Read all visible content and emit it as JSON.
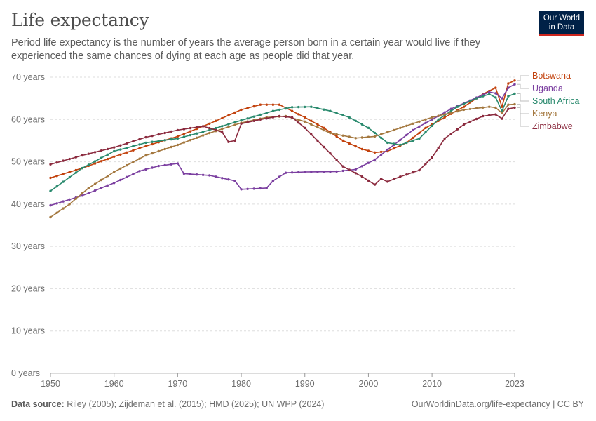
{
  "header": {
    "title": "Life expectancy",
    "subtitle": "Period life expectancy is the number of years the average person born in a certain year would live if they experienced the same chances of dying at each age as people did that year."
  },
  "logo": {
    "line1": "Our World",
    "line2": "in Data"
  },
  "footer": {
    "source_label": "Data source:",
    "source_text": " Riley (2005); Zijdeman et al. (2015); HMD (2025); UN WPP (2024)",
    "link": "OurWorldinData.org/life-expectancy | CC BY"
  },
  "chart_data": {
    "type": "line",
    "title": "Life expectancy",
    "xlim": [
      1950,
      2023
    ],
    "ylim": [
      0,
      70
    ],
    "x_ticks": [
      1950,
      1960,
      1970,
      1980,
      1990,
      2000,
      2010,
      2023
    ],
    "y_ticks": [
      0,
      10,
      20,
      30,
      40,
      50,
      60,
      70
    ],
    "y_tick_labels": [
      "0 years",
      "10 years",
      "20 years",
      "30 years",
      "40 years",
      "50 years",
      "60 years",
      "70 years"
    ],
    "series": [
      {
        "name": "Botswana",
        "color": "#c2410c",
        "values": [
          [
            1950,
            46.2
          ],
          [
            1955,
            48.5
          ],
          [
            1960,
            51.2
          ],
          [
            1965,
            53.7
          ],
          [
            1970,
            56.0
          ],
          [
            1975,
            59.0
          ],
          [
            1980,
            62.3
          ],
          [
            1983,
            63.5
          ],
          [
            1986,
            63.5
          ],
          [
            1990,
            60.5
          ],
          [
            1993,
            58.0
          ],
          [
            1996,
            55.0
          ],
          [
            1999,
            53.0
          ],
          [
            2001,
            52.2
          ],
          [
            2003,
            52.5
          ],
          [
            2006,
            54.5
          ],
          [
            2009,
            58.0
          ],
          [
            2012,
            60.5
          ],
          [
            2015,
            63.0
          ],
          [
            2018,
            66.0
          ],
          [
            2020,
            67.5
          ],
          [
            2021,
            63.0
          ],
          [
            2022,
            68.5
          ],
          [
            2023,
            69.2
          ]
        ]
      },
      {
        "name": "Uganda",
        "color": "#7b3fa0",
        "values": [
          [
            1950,
            39.7
          ],
          [
            1955,
            42.0
          ],
          [
            1960,
            45.0
          ],
          [
            1964,
            47.8
          ],
          [
            1967,
            49.0
          ],
          [
            1970,
            49.6
          ],
          [
            1971,
            47.2
          ],
          [
            1975,
            46.8
          ],
          [
            1979,
            45.5
          ],
          [
            1980,
            43.5
          ],
          [
            1984,
            43.8
          ],
          [
            1985,
            45.5
          ],
          [
            1987,
            47.4
          ],
          [
            1990,
            47.6
          ],
          [
            1995,
            47.7
          ],
          [
            1998,
            48.2
          ],
          [
            2001,
            50.5
          ],
          [
            2004,
            54.0
          ],
          [
            2007,
            57.5
          ],
          [
            2010,
            60.0
          ],
          [
            2013,
            62.5
          ],
          [
            2016,
            64.5
          ],
          [
            2019,
            66.5
          ],
          [
            2020,
            66.2
          ],
          [
            2021,
            65.0
          ],
          [
            2022,
            67.5
          ],
          [
            2023,
            68.3
          ]
        ]
      },
      {
        "name": "South Africa",
        "color": "#2a8a6e",
        "values": [
          [
            1950,
            43.1
          ],
          [
            1955,
            48.5
          ],
          [
            1960,
            52.5
          ],
          [
            1965,
            54.5
          ],
          [
            1970,
            55.5
          ],
          [
            1975,
            57.5
          ],
          [
            1980,
            59.8
          ],
          [
            1985,
            62.0
          ],
          [
            1988,
            62.9
          ],
          [
            1991,
            63.0
          ],
          [
            1994,
            62.0
          ],
          [
            1997,
            60.5
          ],
          [
            2000,
            58.0
          ],
          [
            2003,
            54.5
          ],
          [
            2005,
            54.0
          ],
          [
            2008,
            55.5
          ],
          [
            2011,
            60.0
          ],
          [
            2014,
            63.0
          ],
          [
            2017,
            65.0
          ],
          [
            2019,
            66.0
          ],
          [
            2020,
            65.2
          ],
          [
            2021,
            62.0
          ],
          [
            2022,
            65.5
          ],
          [
            2023,
            66.1
          ]
        ]
      },
      {
        "name": "Kenya",
        "color": "#a4783f",
        "values": [
          [
            1950,
            36.9
          ],
          [
            1953,
            40.0
          ],
          [
            1956,
            43.8
          ],
          [
            1960,
            47.6
          ],
          [
            1965,
            51.5
          ],
          [
            1970,
            54.0
          ],
          [
            1975,
            56.8
          ],
          [
            1980,
            59.2
          ],
          [
            1984,
            60.5
          ],
          [
            1987,
            60.8
          ],
          [
            1990,
            59.5
          ],
          [
            1994,
            56.8
          ],
          [
            1998,
            55.6
          ],
          [
            2001,
            56.0
          ],
          [
            2005,
            58.0
          ],
          [
            2010,
            60.5
          ],
          [
            2015,
            62.3
          ],
          [
            2019,
            63.0
          ],
          [
            2020,
            62.8
          ],
          [
            2021,
            61.5
          ],
          [
            2022,
            63.5
          ],
          [
            2023,
            63.6
          ]
        ]
      },
      {
        "name": "Zimbabwe",
        "color": "#8b2a3e",
        "values": [
          [
            1950,
            49.4
          ],
          [
            1955,
            51.5
          ],
          [
            1960,
            53.4
          ],
          [
            1965,
            55.8
          ],
          [
            1970,
            57.5
          ],
          [
            1974,
            58.4
          ],
          [
            1976,
            57.5
          ],
          [
            1977,
            57.0
          ],
          [
            1978,
            54.7
          ],
          [
            1979,
            55.0
          ],
          [
            1980,
            59.0
          ],
          [
            1983,
            60.0
          ],
          [
            1986,
            60.8
          ],
          [
            1988,
            60.5
          ],
          [
            1990,
            58.0
          ],
          [
            1993,
            53.5
          ],
          [
            1996,
            48.9
          ],
          [
            1999,
            46.5
          ],
          [
            2001,
            44.6
          ],
          [
            2002,
            46.0
          ],
          [
            2003,
            45.3
          ],
          [
            2005,
            46.5
          ],
          [
            2008,
            48.0
          ],
          [
            2010,
            51.0
          ],
          [
            2012,
            55.5
          ],
          [
            2015,
            58.8
          ],
          [
            2018,
            60.8
          ],
          [
            2020,
            61.2
          ],
          [
            2021,
            60.2
          ],
          [
            2022,
            62.5
          ],
          [
            2023,
            62.8
          ]
        ]
      }
    ],
    "legend_order": [
      "Botswana",
      "Uganda",
      "South Africa",
      "Kenya",
      "Zimbabwe"
    ],
    "grid": true,
    "legend": "right"
  }
}
